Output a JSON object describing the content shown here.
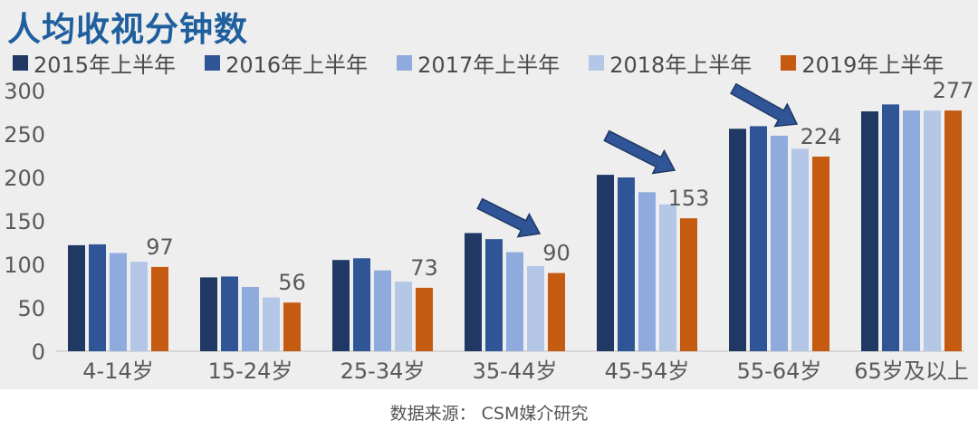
{
  "chart_data": {
    "type": "bar",
    "title": "人均收视分钟数",
    "categories": [
      "4-14岁",
      "15-24岁",
      "25-34岁",
      "35-44岁",
      "45-54岁",
      "55-64岁",
      "65岁及以上"
    ],
    "series": [
      {
        "name": "2015年上半年",
        "color": "#1f3864",
        "values": [
          122,
          85,
          105,
          136,
          203,
          256,
          276
        ]
      },
      {
        "name": "2016年上半年",
        "color": "#2f5597",
        "values": [
          123,
          86,
          107,
          129,
          200,
          259,
          284
        ]
      },
      {
        "name": "2017年上半年",
        "color": "#8faadc",
        "values": [
          113,
          74,
          93,
          114,
          183,
          248,
          277
        ]
      },
      {
        "name": "2018年上半年",
        "color": "#b4c7e7",
        "values": [
          103,
          62,
          80,
          98,
          169,
          233,
          277
        ]
      },
      {
        "name": "2019年上半年",
        "color": "#c55a11",
        "values": [
          97,
          56,
          73,
          90,
          153,
          224,
          277
        ]
      }
    ],
    "data_labels": [
      "97",
      "56",
      "73",
      "90",
      "153",
      "224",
      "277"
    ],
    "yticks": [
      "0",
      "50",
      "100",
      "150",
      "200",
      "250",
      "300"
    ],
    "ylim": [
      0,
      300
    ],
    "grid": false,
    "legend_position": "top",
    "annotations": "downward arrows above 35-44岁, 45-54岁 and 55-64岁 groups"
  },
  "source": "数据来源： CSM媒介研究"
}
